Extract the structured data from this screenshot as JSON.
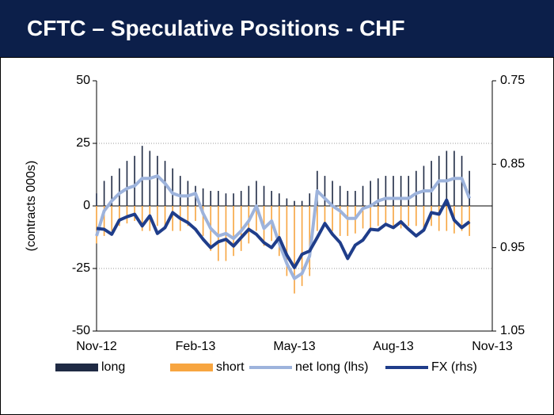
{
  "chart_data": {
    "type": "bar",
    "title": "CFTC – Speculative Positions - CHF",
    "y_label": "(contracts 000s)",
    "categories": [
      "Nov-12",
      null,
      null,
      null,
      null,
      null,
      null,
      null,
      null,
      null,
      null,
      null,
      null,
      "Feb-13",
      null,
      null,
      null,
      null,
      null,
      null,
      null,
      null,
      null,
      null,
      null,
      null,
      "May-13",
      null,
      null,
      null,
      null,
      null,
      null,
      null,
      null,
      null,
      null,
      null,
      null,
      "Aug-13",
      null,
      null,
      null,
      null,
      null,
      null,
      null,
      null,
      null,
      null,
      null,
      null,
      "Nov-13"
    ],
    "series": [
      {
        "name": "long",
        "type": "bar",
        "color": "#1f2a44",
        "values": [
          5,
          10,
          12,
          15,
          18,
          20,
          24,
          22,
          20,
          18,
          15,
          12,
          10,
          8,
          7,
          6,
          6,
          5,
          5,
          6,
          8,
          10,
          8,
          6,
          5,
          3,
          2,
          2,
          5,
          14,
          12,
          10,
          8,
          6,
          6,
          8,
          10,
          11,
          12,
          12,
          12,
          12,
          14,
          16,
          18,
          20,
          22,
          22,
          20,
          14,
          null,
          null,
          null
        ]
      },
      {
        "name": "short",
        "type": "bar",
        "color": "#f7a540",
        "values": [
          -15,
          -12,
          -10,
          -8,
          -7,
          -6,
          -10,
          -10,
          -8,
          -8,
          -10,
          -10,
          -8,
          -6,
          -12,
          -18,
          -22,
          -22,
          -20,
          -18,
          -15,
          -10,
          -16,
          -14,
          -20,
          -28,
          -35,
          -32,
          -28,
          -10,
          -8,
          -10,
          -12,
          -12,
          -11,
          -9,
          -10,
          -8,
          -8,
          -8,
          -9,
          -8,
          -8,
          -10,
          -8,
          -10,
          -10,
          -11,
          -10,
          -12,
          null,
          null,
          null
        ]
      },
      {
        "name": "net long (lhs)",
        "type": "line",
        "color": "#9db3dc",
        "values": [
          -12,
          -2,
          2,
          5,
          7,
          8,
          11,
          11,
          12,
          9,
          5,
          4,
          4,
          5,
          -3,
          -9,
          -12,
          -11,
          -13,
          -10,
          -6,
          0,
          -9,
          -6,
          -15,
          -23,
          -29,
          -27,
          -20,
          6,
          3,
          0,
          -2,
          -5,
          -5,
          -1,
          0,
          2,
          3,
          3,
          3,
          3,
          5,
          6,
          6,
          10,
          10,
          11,
          11,
          3,
          null,
          null,
          null
        ]
      },
      {
        "name": "FX (rhs)",
        "type": "line",
        "axis": "y2",
        "color": "#1f3d8a",
        "values": [
          0.927,
          0.928,
          0.934,
          0.917,
          0.913,
          0.91,
          0.924,
          0.912,
          0.933,
          0.926,
          0.908,
          0.915,
          0.92,
          0.928,
          0.94,
          0.95,
          0.943,
          0.94,
          0.948,
          0.938,
          0.928,
          0.934,
          0.944,
          0.95,
          0.938,
          0.959,
          0.974,
          0.958,
          0.954,
          0.938,
          0.921,
          0.934,
          0.944,
          0.963,
          0.947,
          0.941,
          0.928,
          0.929,
          0.922,
          0.926,
          0.919,
          0.928,
          0.936,
          0.929,
          0.908,
          0.91,
          0.893,
          0.917,
          0.926,
          0.919,
          null,
          null,
          null
        ]
      }
    ],
    "ylim": [
      -50,
      50
    ],
    "yticks": [
      50,
      25,
      0,
      -25,
      -50
    ],
    "y2lim": [
      1.05,
      0.75
    ],
    "y2ticks": [
      0.75,
      0.85,
      0.95,
      1.05
    ],
    "grid": true,
    "legend": "bottom"
  }
}
